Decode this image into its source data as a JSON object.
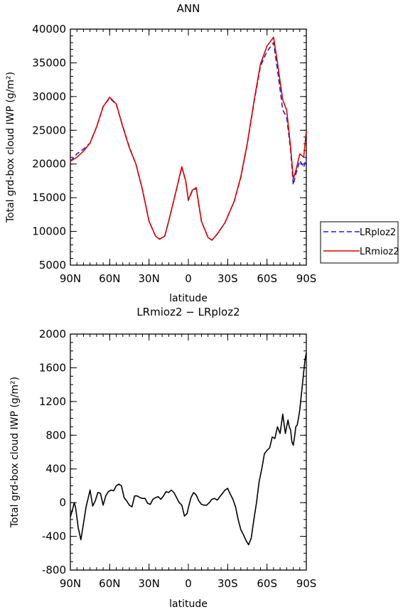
{
  "chart_data": [
    {
      "type": "line",
      "title": "ANN",
      "xlabel": "latitude",
      "ylabel": "Total grd-box cloud IWP (g/m²)",
      "xlim": [
        -90,
        90
      ],
      "ylim": [
        5000,
        40000
      ],
      "x_ticks": [
        -90,
        -60,
        -30,
        0,
        30,
        60,
        90
      ],
      "x_tick_labels": [
        "90N",
        "60N",
        "30N",
        "0",
        "30S",
        "60S",
        "90S"
      ],
      "y_ticks": [
        5000,
        10000,
        15000,
        20000,
        25000,
        30000,
        35000,
        40000
      ],
      "y_tick_labels": [
        "5000",
        "10000",
        "15000",
        "20000",
        "25000",
        "30000",
        "35000",
        "40000"
      ],
      "grid": false,
      "legend_position": "right",
      "series": [
        {
          "name": "LRploz2",
          "color": "#1f1fd6",
          "dash": "dashed",
          "x": [
            -90,
            -85,
            -80,
            -75,
            -70,
            -65,
            -60,
            -55,
            -50,
            -45,
            -40,
            -35,
            -30,
            -25,
            -22,
            -18,
            -15,
            -10,
            -5,
            -2,
            0,
            3,
            6,
            10,
            15,
            18,
            22,
            28,
            35,
            40,
            45,
            50,
            55,
            60,
            65,
            68,
            72,
            75,
            78,
            80,
            82,
            85,
            88,
            90
          ],
          "y": [
            20400,
            21500,
            22200,
            23100,
            25500,
            28500,
            29800,
            28800,
            25600,
            22500,
            20000,
            16200,
            11500,
            9300,
            8850,
            9300,
            11500,
            15500,
            19500,
            17500,
            14600,
            16000,
            16400,
            11500,
            9100,
            8700,
            9600,
            11300,
            14500,
            18000,
            23000,
            29000,
            34500,
            36700,
            38000,
            34000,
            28000,
            27000,
            22000,
            16900,
            18500,
            20500,
            19500,
            21000
          ]
        },
        {
          "name": "LRmioz2",
          "color": "#e00000",
          "dash": "solid",
          "x": [
            -90,
            -85,
            -80,
            -75,
            -70,
            -65,
            -60,
            -55,
            -50,
            -45,
            -40,
            -35,
            -30,
            -25,
            -22,
            -18,
            -15,
            -10,
            -5,
            -2,
            0,
            3,
            6,
            10,
            15,
            18,
            22,
            28,
            35,
            40,
            45,
            50,
            55,
            60,
            65,
            68,
            72,
            75,
            78,
            80,
            82,
            85,
            88,
            90
          ],
          "y": [
            20400,
            21000,
            21900,
            23100,
            25500,
            28500,
            29900,
            28900,
            25500,
            22400,
            20000,
            16200,
            11500,
            9300,
            8850,
            9300,
            11500,
            15500,
            19600,
            17500,
            14700,
            16100,
            16500,
            11500,
            9100,
            8700,
            9600,
            11300,
            14500,
            18100,
            23100,
            29200,
            34800,
            37500,
            38800,
            35000,
            29500,
            28000,
            22500,
            17800,
            19000,
            21500,
            21000,
            25000
          ]
        }
      ]
    },
    {
      "type": "line",
      "title": "LRmioz2 − LRploz2",
      "xlabel": "latitude",
      "ylabel": "Total grd-box cloud IWP (g/m²)",
      "xlim": [
        -90,
        90
      ],
      "ylim": [
        -800,
        2000
      ],
      "x_ticks": [
        -90,
        -60,
        -30,
        0,
        30,
        60,
        90
      ],
      "x_tick_labels": [
        "90N",
        "60N",
        "30N",
        "0",
        "30S",
        "60S",
        "90S"
      ],
      "y_ticks": [
        -800,
        -400,
        0,
        400,
        800,
        1200,
        1600,
        2000
      ],
      "y_tick_labels": [
        "-800",
        "-400",
        "0",
        "400",
        "800",
        "1200",
        "1600",
        "2000"
      ],
      "grid": false,
      "series": [
        {
          "color": "#000000",
          "dash": "solid",
          "x": [
            -90,
            -88,
            -87,
            -86,
            -84,
            -82,
            -80,
            -78,
            -76,
            -75,
            -73,
            -71,
            -69,
            -67,
            -65,
            -63,
            -61,
            -59,
            -57,
            -55,
            -53,
            -51,
            -49,
            -47,
            -45,
            -43,
            -41,
            -39,
            -37,
            -35,
            -33,
            -31,
            -29,
            -27,
            -25,
            -23,
            -21,
            -19,
            -17,
            -15,
            -13,
            -11,
            -9,
            -7,
            -5,
            -3,
            -1,
            0,
            2,
            4,
            6,
            8,
            10,
            12,
            14,
            16,
            18,
            20,
            22,
            24,
            26,
            28,
            30,
            32,
            34,
            36,
            38,
            40,
            42,
            44,
            46,
            48,
            50,
            52,
            54,
            56,
            58,
            60,
            62,
            64,
            66,
            68,
            70,
            72,
            74,
            75,
            76,
            77,
            78,
            79,
            80,
            81,
            82,
            83,
            84,
            85,
            86,
            87,
            88,
            89,
            90
          ],
          "y": [
            -170,
            -60,
            0,
            -60,
            -300,
            -440,
            -250,
            -50,
            80,
            150,
            -40,
            20,
            120,
            110,
            -30,
            80,
            130,
            150,
            140,
            200,
            220,
            200,
            60,
            20,
            -30,
            -50,
            80,
            80,
            60,
            50,
            50,
            -10,
            -20,
            40,
            60,
            70,
            40,
            80,
            130,
            120,
            150,
            120,
            60,
            0,
            -30,
            -160,
            -130,
            -60,
            60,
            120,
            90,
            20,
            -20,
            -30,
            -30,
            0,
            40,
            50,
            30,
            70,
            110,
            150,
            170,
            100,
            40,
            -50,
            -200,
            -320,
            -380,
            -450,
            -500,
            -420,
            -200,
            0,
            250,
            400,
            580,
            620,
            650,
            780,
            760,
            900,
            820,
            1050,
            820,
            900,
            980,
            900,
            860,
            720,
            680,
            780,
            900,
            920,
            1000,
            1100,
            1250,
            1400,
            1550,
            1700,
            1780
          ]
        }
      ]
    }
  ]
}
